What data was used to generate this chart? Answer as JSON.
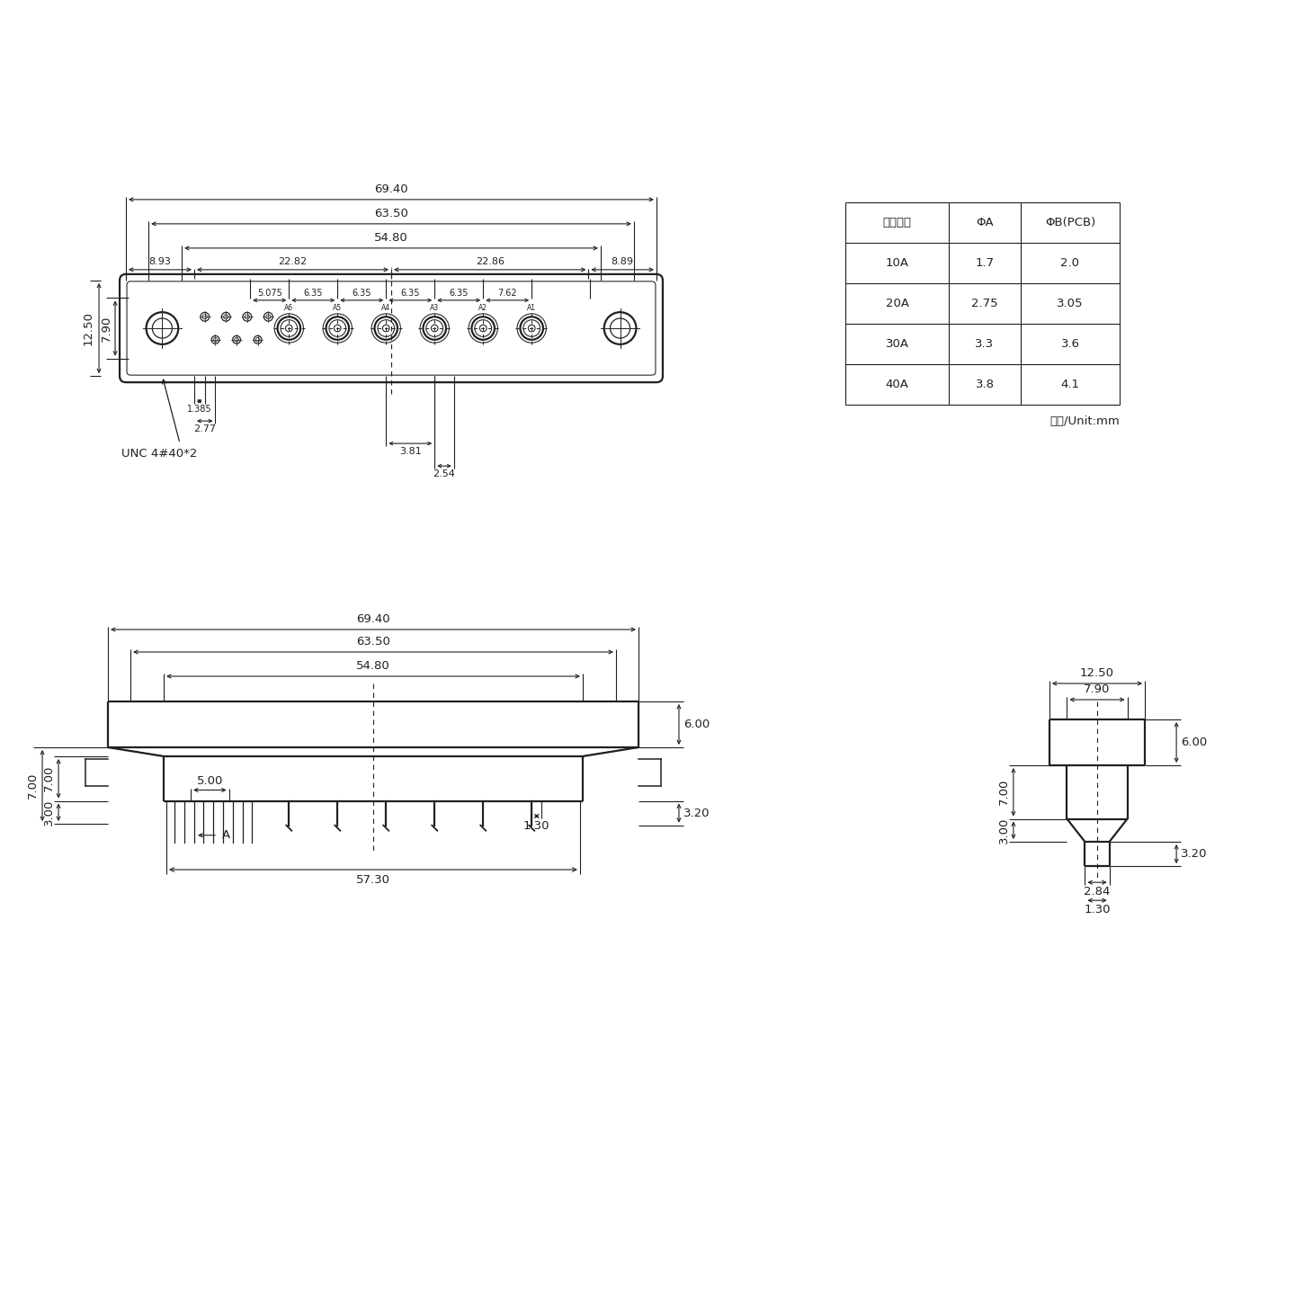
{
  "bg_color": "#ffffff",
  "line_color": "#231f20",
  "table_headers": [
    "额定电流",
    "ΦA",
    "ΦB(PCB)"
  ],
  "table_rows": [
    [
      "10A",
      "1.7",
      "2.0"
    ],
    [
      "20A",
      "2.75",
      "3.05"
    ],
    [
      "30A",
      "3.3",
      "3.6"
    ],
    [
      "40A",
      "3.8",
      "4.1"
    ]
  ],
  "unit_text": "单位/Unit:mm",
  "note_text": "UNC 4#40*2",
  "scale": 8.5,
  "fs": 9.5,
  "fs_small": 8.0,
  "lw_main": 1.6,
  "lw_med": 1.1,
  "lw_dim": 0.8
}
